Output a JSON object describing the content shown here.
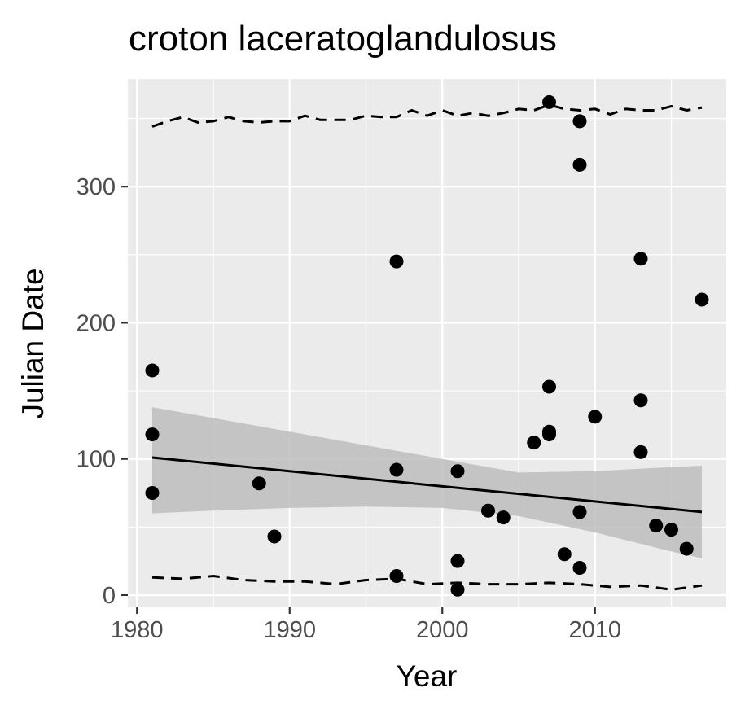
{
  "chart_data": {
    "type": "scatter",
    "title": "croton laceratoglandulosus",
    "xlabel": "Year",
    "ylabel": "Julian Date",
    "xlim": [
      1979.4,
      2018.6
    ],
    "ylim": [
      -9,
      379
    ],
    "xticks": [
      1980,
      1990,
      2000,
      2010
    ],
    "yticks": [
      0,
      100,
      200,
      300
    ],
    "xtick_labels": [
      "1980",
      "1990",
      "2000",
      "2010"
    ],
    "ytick_labels": [
      "0",
      "100",
      "200",
      "300"
    ],
    "grid": true,
    "colors": {
      "panel": "#ebebeb",
      "grid": "#ffffff",
      "points": "#000000",
      "ribbon": "#bdbdbd",
      "fit_line": "#000000",
      "tick_text": "#4d4d4d"
    },
    "points": [
      {
        "x": 1981,
        "y": 165
      },
      {
        "x": 1981,
        "y": 118
      },
      {
        "x": 1981,
        "y": 75
      },
      {
        "x": 1988,
        "y": 82
      },
      {
        "x": 1989,
        "y": 43
      },
      {
        "x": 1997,
        "y": 245
      },
      {
        "x": 1997,
        "y": 92
      },
      {
        "x": 1997,
        "y": 14
      },
      {
        "x": 2001,
        "y": 91
      },
      {
        "x": 2001,
        "y": 25
      },
      {
        "x": 2001,
        "y": 4
      },
      {
        "x": 2003,
        "y": 62
      },
      {
        "x": 2004,
        "y": 57
      },
      {
        "x": 2006,
        "y": 112
      },
      {
        "x": 2007,
        "y": 362
      },
      {
        "x": 2007,
        "y": 153
      },
      {
        "x": 2007,
        "y": 120
      },
      {
        "x": 2007,
        "y": 118
      },
      {
        "x": 2008,
        "y": 30
      },
      {
        "x": 2009,
        "y": 348
      },
      {
        "x": 2009,
        "y": 316
      },
      {
        "x": 2009,
        "y": 61
      },
      {
        "x": 2009,
        "y": 20
      },
      {
        "x": 2010,
        "y": 131
      },
      {
        "x": 2013,
        "y": 247
      },
      {
        "x": 2013,
        "y": 143
      },
      {
        "x": 2013,
        "y": 105
      },
      {
        "x": 2014,
        "y": 51
      },
      {
        "x": 2015,
        "y": 48
      },
      {
        "x": 2016,
        "y": 34
      },
      {
        "x": 2017,
        "y": 217
      }
    ],
    "fit_line": {
      "x": [
        1981,
        2017
      ],
      "y": [
        101,
        61
      ]
    },
    "confidence_band": {
      "x": [
        1981,
        1985,
        1990,
        1995,
        2000,
        2005,
        2010,
        2015,
        2017
      ],
      "upper": [
        138,
        130,
        120,
        110,
        100,
        90,
        91,
        94,
        95
      ],
      "lower": [
        60,
        62,
        64,
        65,
        64,
        58,
        46,
        32,
        27
      ]
    },
    "upper_dashed": {
      "x": [
        1981,
        1982,
        1983,
        1984,
        1985,
        1986,
        1987,
        1988,
        1989,
        1990,
        1991,
        1992,
        1993,
        1994,
        1995,
        1996,
        1997,
        1998,
        1999,
        2000,
        2001,
        2002,
        2003,
        2004,
        2005,
        2006,
        2007,
        2008,
        2009,
        2010,
        2011,
        2012,
        2013,
        2014,
        2015,
        2016,
        2017
      ],
      "y": [
        344,
        348,
        351,
        347,
        348,
        351,
        348,
        347,
        348,
        348,
        352,
        349,
        349,
        349,
        352,
        351,
        351,
        356,
        352,
        356,
        352,
        354,
        352,
        354,
        357,
        356,
        360,
        357,
        356,
        357,
        353,
        357,
        356,
        356,
        359,
        356,
        358
      ]
    },
    "lower_dashed": {
      "x": [
        1981,
        1983,
        1985,
        1987,
        1989,
        1991,
        1993,
        1995,
        1997,
        1999,
        2001,
        2003,
        2005,
        2007,
        2009,
        2011,
        2013,
        2015,
        2017
      ],
      "y": [
        13,
        12,
        14,
        11,
        10,
        10,
        8,
        11,
        12,
        8,
        9,
        8,
        8,
        9,
        8,
        6,
        7,
        4,
        7
      ]
    }
  }
}
